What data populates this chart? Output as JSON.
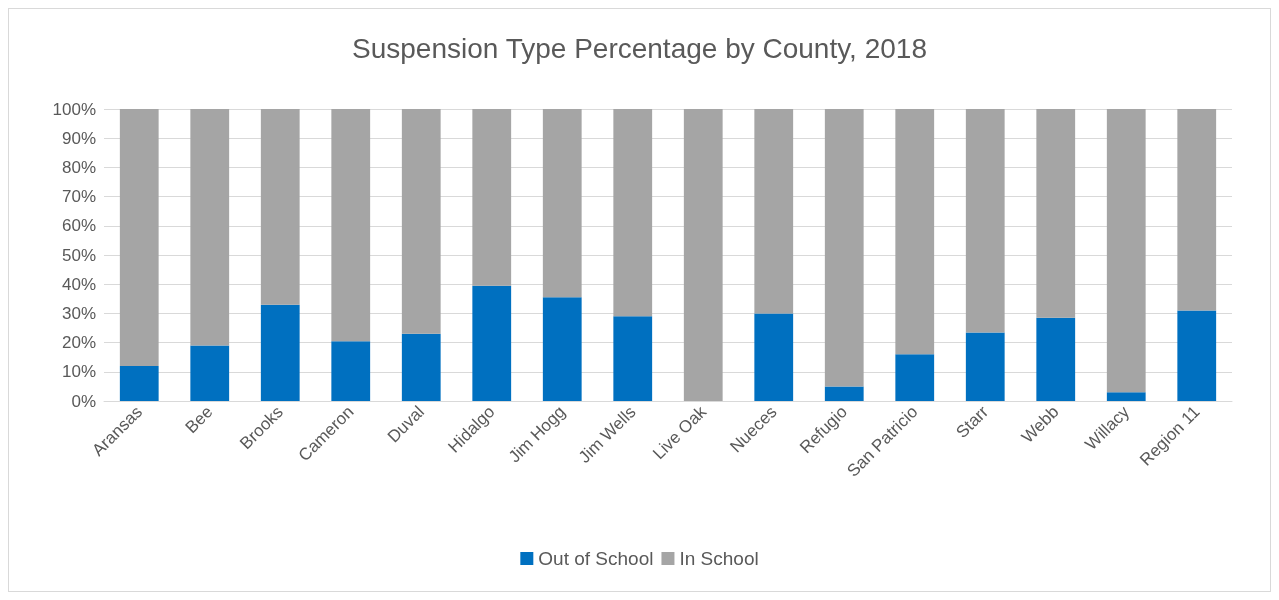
{
  "chart_data": {
    "type": "bar",
    "title": "Suspension Type Percentage by County, 2018",
    "stacked": true,
    "grid": "y",
    "legend": "bottom",
    "categories": [
      "Aransas",
      "Bee",
      "Brooks",
      "Cameron",
      "Duval",
      "Hidalgo",
      "Jim Hogg",
      "Jim Wells",
      "Live Oak",
      "Nueces",
      "Refugio",
      "San Patricio",
      "Starr",
      "Webb",
      "Willacy",
      "Region 11"
    ],
    "series": [
      {
        "name": "Out of School",
        "color": "#0070c0",
        "values": [
          12,
          19,
          33,
          20.5,
          23,
          39.5,
          35.5,
          29,
          0,
          30,
          5,
          16,
          23.5,
          28.5,
          3,
          31
        ]
      },
      {
        "name": "In School",
        "color": "#a5a5a5",
        "values": [
          88,
          81,
          67,
          79.5,
          77,
          60.5,
          64.5,
          71,
          100,
          70,
          95,
          84,
          76.5,
          71.5,
          97,
          69
        ]
      }
    ],
    "ylim": [
      0,
      100
    ],
    "yticks": [
      {
        "value": 0,
        "label": "0%"
      },
      {
        "value": 10,
        "label": "10%"
      },
      {
        "value": 20,
        "label": "20%"
      },
      {
        "value": 30,
        "label": "30%"
      },
      {
        "value": 40,
        "label": "40%"
      },
      {
        "value": 50,
        "label": "50%"
      },
      {
        "value": 60,
        "label": "60%"
      },
      {
        "value": 70,
        "label": "70%"
      },
      {
        "value": 80,
        "label": "80%"
      },
      {
        "value": 90,
        "label": "90%"
      },
      {
        "value": 100,
        "label": "100%"
      }
    ]
  }
}
